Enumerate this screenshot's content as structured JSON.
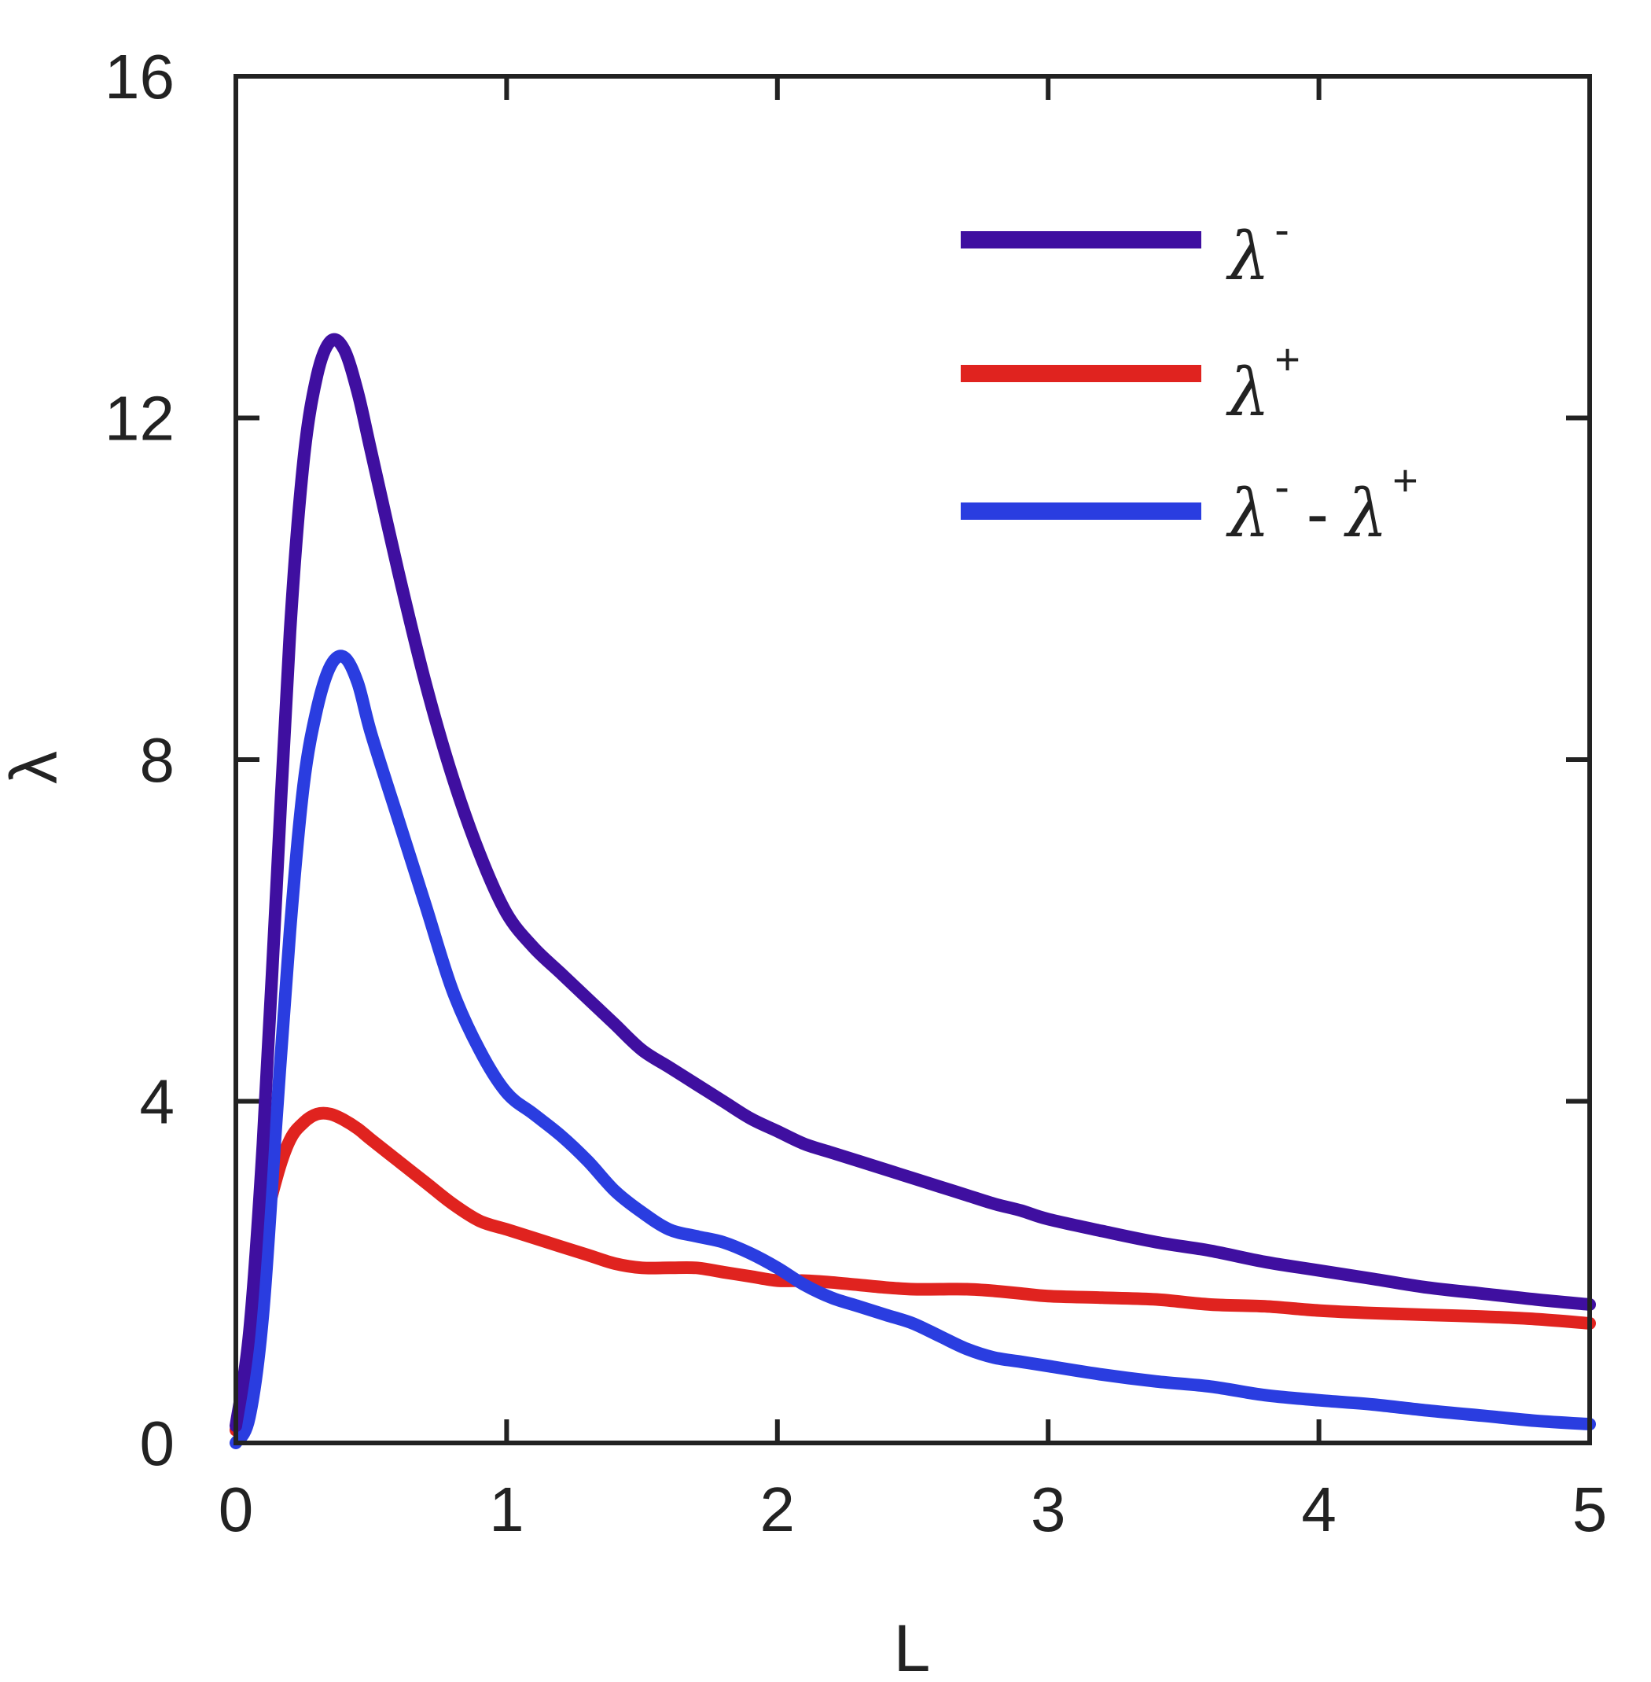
{
  "chart_data": {
    "type": "line",
    "xlabel": "L",
    "ylabel": "λ",
    "xlim": [
      0,
      5
    ],
    "ylim": [
      0,
      16
    ],
    "xticks": [
      0,
      1,
      2,
      3,
      4,
      5
    ],
    "xtick_labels": [
      "0",
      "1",
      "2",
      "3",
      "4",
      "5"
    ],
    "yticks": [
      0,
      4,
      8,
      12,
      16
    ],
    "ytick_labels": [
      "0",
      "4",
      "8",
      "12",
      "16"
    ],
    "grid": false,
    "legend_position": "top-right",
    "series": [
      {
        "legend_base": "λ",
        "legend_sup": "-",
        "color": "#3f0fa0",
        "x": [
          0.0,
          0.05,
          0.1,
          0.15,
          0.2,
          0.25,
          0.3,
          0.35,
          0.4,
          0.45,
          0.5,
          0.6,
          0.7,
          0.8,
          0.9,
          1.0,
          1.1,
          1.2,
          1.3,
          1.4,
          1.5,
          1.6,
          1.7,
          1.8,
          1.9,
          2.0,
          2.1,
          2.2,
          2.3,
          2.4,
          2.5,
          2.6,
          2.7,
          2.8,
          2.9,
          3.0,
          3.2,
          3.4,
          3.6,
          3.8,
          4.0,
          4.2,
          4.4,
          4.6,
          4.8,
          5.0
        ],
        "y": [
          0.2,
          1.3,
          3.5,
          6.5,
          9.5,
          11.5,
          12.5,
          12.9,
          12.8,
          12.3,
          11.6,
          10.2,
          8.9,
          7.8,
          6.9,
          6.2,
          5.8,
          5.5,
          5.2,
          4.9,
          4.6,
          4.4,
          4.2,
          4.0,
          3.8,
          3.65,
          3.5,
          3.4,
          3.3,
          3.2,
          3.1,
          3.0,
          2.9,
          2.8,
          2.72,
          2.62,
          2.48,
          2.35,
          2.25,
          2.12,
          2.02,
          1.92,
          1.82,
          1.75,
          1.68,
          1.62
        ]
      },
      {
        "legend_base": "λ",
        "legend_sup": "+",
        "color": "#e0231f",
        "x": [
          0.0,
          0.05,
          0.1,
          0.15,
          0.2,
          0.25,
          0.3,
          0.35,
          0.4,
          0.45,
          0.5,
          0.6,
          0.7,
          0.8,
          0.9,
          1.0,
          1.1,
          1.2,
          1.3,
          1.4,
          1.5,
          1.6,
          1.7,
          1.8,
          1.9,
          2.0,
          2.1,
          2.2,
          2.3,
          2.4,
          2.5,
          2.6,
          2.7,
          2.8,
          2.9,
          3.0,
          3.2,
          3.4,
          3.6,
          3.8,
          4.0,
          4.2,
          4.4,
          4.6,
          4.8,
          5.0
        ],
        "y": [
          0.15,
          1.2,
          2.4,
          3.1,
          3.55,
          3.75,
          3.85,
          3.85,
          3.78,
          3.68,
          3.55,
          3.3,
          3.05,
          2.8,
          2.6,
          2.5,
          2.4,
          2.3,
          2.2,
          2.1,
          2.05,
          2.05,
          2.05,
          2.0,
          1.95,
          1.9,
          1.9,
          1.88,
          1.85,
          1.82,
          1.8,
          1.8,
          1.8,
          1.78,
          1.75,
          1.72,
          1.7,
          1.68,
          1.62,
          1.6,
          1.55,
          1.52,
          1.5,
          1.48,
          1.45,
          1.4
        ]
      },
      {
        "legend_base": "λ",
        "legend_sup": "-",
        "legend_base2": "λ",
        "legend_sup2": "+",
        "color": "#2a3de0",
        "x": [
          0.0,
          0.05,
          0.1,
          0.15,
          0.2,
          0.25,
          0.3,
          0.35,
          0.4,
          0.45,
          0.5,
          0.6,
          0.7,
          0.8,
          0.9,
          1.0,
          1.1,
          1.2,
          1.3,
          1.4,
          1.5,
          1.6,
          1.7,
          1.8,
          1.9,
          2.0,
          2.1,
          2.2,
          2.3,
          2.4,
          2.5,
          2.6,
          2.7,
          2.8,
          2.9,
          3.0,
          3.2,
          3.4,
          3.6,
          3.8,
          4.0,
          4.2,
          4.4,
          4.6,
          4.8,
          5.0
        ],
        "y": [
          0.0,
          0.3,
          1.5,
          3.8,
          6.0,
          7.7,
          8.6,
          9.1,
          9.2,
          8.9,
          8.3,
          7.3,
          6.3,
          5.3,
          4.6,
          4.1,
          3.85,
          3.6,
          3.3,
          2.95,
          2.7,
          2.5,
          2.42,
          2.35,
          2.22,
          2.05,
          1.85,
          1.7,
          1.6,
          1.5,
          1.4,
          1.25,
          1.1,
          1.0,
          0.95,
          0.9,
          0.8,
          0.72,
          0.66,
          0.56,
          0.5,
          0.45,
          0.38,
          0.32,
          0.26,
          0.22
        ]
      }
    ]
  }
}
